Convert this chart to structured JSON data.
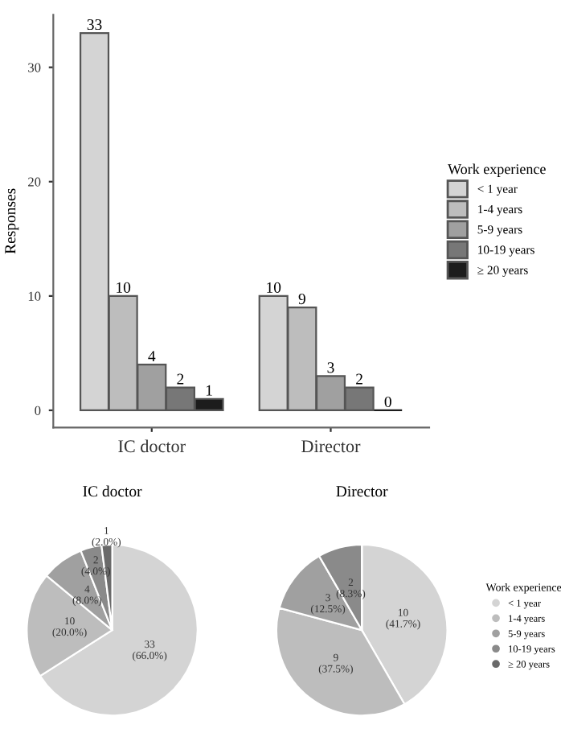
{
  "chart_data": [
    {
      "type": "bar",
      "ylabel": "Responses",
      "categories": [
        "IC doctor",
        "Director"
      ],
      "legend_title": "Work experience",
      "legend": "right",
      "data_labels": true,
      "ylim": [
        -1.5,
        34.6
      ],
      "yticks": [
        0,
        10,
        20,
        30
      ],
      "series": [
        {
          "name": "< 1 year",
          "color": "#d4d4d4",
          "values": [
            33,
            10
          ]
        },
        {
          "name": "1-4 years",
          "color": "#bdbdbd",
          "values": [
            10,
            9
          ]
        },
        {
          "name": "5-9 years",
          "color": "#a0a0a0",
          "values": [
            4,
            3
          ]
        },
        {
          "name": "10-19 years",
          "color": "#777777",
          "values": [
            2,
            2
          ]
        },
        {
          "name": "≥ 20 years",
          "color": "#1c1c1c",
          "values": [
            1,
            0
          ]
        }
      ]
    },
    {
      "type": "pie",
      "title": "IC doctor",
      "categories": [
        "< 1 year",
        "1-4 years",
        "5-9 years",
        "10-19 years",
        "≥ 20 years"
      ],
      "values": [
        33,
        10,
        4,
        2,
        1
      ],
      "colors": [
        "#d4d4d4",
        "#bdbdbd",
        "#a0a0a0",
        "#8a8a8a",
        "#6a6a6a"
      ],
      "value_labels": [
        "33\n(66.0%)",
        "10\n(20.0%)",
        "4\n(8.0%)",
        "2\n(4.0%)",
        "1\n(2.0%)"
      ],
      "legend": "right",
      "legend_title": "Work experience"
    },
    {
      "type": "pie",
      "title": "Director",
      "categories": [
        null,
        null,
        null,
        null,
        null
      ],
      "values": [
        10,
        9,
        3,
        2,
        0
      ],
      "colors": [
        "#d4d4d4",
        "#bdbdbd",
        "#a0a0a0",
        "#8a8a8a",
        "#6a6a6a"
      ],
      "value_labels": [
        "10\n(41.7%)",
        "9\n(37.5%)",
        "3\n(12.5%)",
        "2\n(8.3%)",
        null
      ]
    }
  ]
}
